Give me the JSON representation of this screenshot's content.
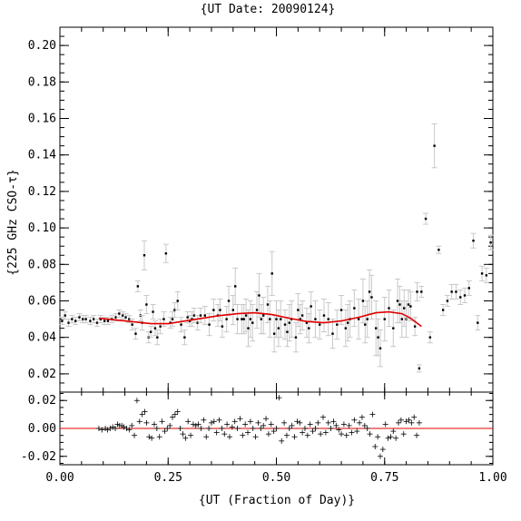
{
  "chart_data": {
    "type": "scatter",
    "title": "{UT Date: 20090124}",
    "xlabel": "{UT (Fraction of Day)}",
    "ylabel": "{225 GHz CSO-τ}",
    "xlim": [
      0,
      1
    ],
    "ylim": [
      0.01,
      0.21
    ],
    "xticks": [
      "0.00",
      "0.25",
      "0.50",
      "0.75",
      "1.00"
    ],
    "yticks": [
      "0.02",
      "0.04",
      "0.06",
      "0.08",
      "0.10",
      "0.12",
      "0.14",
      "0.16",
      "0.18",
      "0.20"
    ],
    "colors": {
      "fit": "#e00000",
      "errorbar": "#c8c8c8",
      "points": "#000000"
    },
    "data": {
      "x": [
        0.005,
        0.012,
        0.02,
        0.028,
        0.036,
        0.045,
        0.053,
        0.06,
        0.07,
        0.078,
        0.086,
        0.094,
        0.103,
        0.111,
        0.12,
        0.129,
        0.137,
        0.145,
        0.152,
        0.16,
        0.167,
        0.175,
        0.18,
        0.186,
        0.19,
        0.195,
        0.2,
        0.205,
        0.21,
        0.215,
        0.22,
        0.225,
        0.232,
        0.24,
        0.245,
        0.255,
        0.26,
        0.265,
        0.272,
        0.28,
        0.288,
        0.295,
        0.3,
        0.305,
        0.31,
        0.318,
        0.325,
        0.335,
        0.345,
        0.355,
        0.365,
        0.37,
        0.375,
        0.385,
        0.39,
        0.4,
        0.405,
        0.41,
        0.42,
        0.425,
        0.43,
        0.435,
        0.44,
        0.445,
        0.455,
        0.46,
        0.465,
        0.47,
        0.48,
        0.485,
        0.49,
        0.495,
        0.5,
        0.505,
        0.51,
        0.52,
        0.525,
        0.53,
        0.535,
        0.545,
        0.55,
        0.555,
        0.56,
        0.57,
        0.575,
        0.58,
        0.59,
        0.6,
        0.61,
        0.62,
        0.63,
        0.64,
        0.65,
        0.66,
        0.665,
        0.67,
        0.68,
        0.69,
        0.7,
        0.705,
        0.71,
        0.715,
        0.72,
        0.73,
        0.735,
        0.74,
        0.75,
        0.76,
        0.77,
        0.78,
        0.785,
        0.79,
        0.795,
        0.8,
        0.805,
        0.81,
        0.82,
        0.825,
        0.83,
        0.835,
        0.845,
        0.855,
        0.865,
        0.875,
        0.885,
        0.895,
        0.905,
        0.915,
        0.925,
        0.935,
        0.945,
        0.955,
        0.965,
        0.975,
        0.985,
        0.995
      ],
      "y": [
        0.049,
        0.052,
        0.048,
        0.05,
        0.049,
        0.051,
        0.05,
        0.05,
        0.049,
        0.05,
        0.048,
        0.05,
        0.049,
        0.049,
        0.05,
        0.051,
        0.053,
        0.052,
        0.051,
        0.05,
        0.047,
        0.042,
        0.068,
        0.052,
        0.048,
        0.085,
        0.058,
        0.04,
        0.043,
        0.054,
        0.045,
        0.04,
        0.046,
        0.05,
        0.086,
        0.048,
        0.05,
        0.055,
        0.06,
        0.047,
        0.04,
        0.051,
        0.049,
        0.05,
        0.052,
        0.048,
        0.052,
        0.052,
        0.047,
        0.055,
        0.052,
        0.055,
        0.046,
        0.05,
        0.06,
        0.055,
        0.068,
        0.05,
        0.05,
        0.05,
        0.052,
        0.045,
        0.05,
        0.048,
        0.055,
        0.063,
        0.05,
        0.052,
        0.058,
        0.05,
        0.075,
        0.042,
        0.05,
        0.045,
        0.05,
        0.047,
        0.043,
        0.048,
        0.05,
        0.04,
        0.055,
        0.05,
        0.052,
        0.048,
        0.045,
        0.057,
        0.05,
        0.047,
        0.052,
        0.05,
        0.042,
        0.047,
        0.055,
        0.045,
        0.048,
        0.05,
        0.056,
        0.05,
        0.06,
        0.047,
        0.05,
        0.065,
        0.062,
        0.045,
        0.04,
        0.034,
        0.05,
        0.056,
        0.045,
        0.06,
        0.058,
        0.05,
        0.056,
        0.05,
        0.058,
        0.057,
        0.046,
        0.065,
        0.023,
        0.065,
        0.105,
        0.04,
        0.145,
        0.088,
        0.055,
        0.06,
        0.065,
        0.065,
        0.062,
        0.063,
        0.067,
        0.093,
        0.048,
        0.075,
        0.074,
        0.092
      ],
      "err": [
        0.002,
        0.002,
        0.002,
        0.002,
        0.002,
        0.002,
        0.002,
        0.002,
        0.002,
        0.002,
        0.002,
        0.002,
        0.002,
        0.002,
        0.002,
        0.002,
        0.002,
        0.002,
        0.002,
        0.002,
        0.003,
        0.003,
        0.003,
        0.003,
        0.004,
        0.008,
        0.005,
        0.003,
        0.003,
        0.004,
        0.004,
        0.004,
        0.004,
        0.004,
        0.005,
        0.003,
        0.004,
        0.004,
        0.005,
        0.004,
        0.004,
        0.003,
        0.003,
        0.004,
        0.004,
        0.004,
        0.004,
        0.005,
        0.006,
        0.006,
        0.006,
        0.006,
        0.006,
        0.007,
        0.008,
        0.008,
        0.01,
        0.008,
        0.008,
        0.008,
        0.009,
        0.01,
        0.01,
        0.01,
        0.01,
        0.012,
        0.008,
        0.01,
        0.01,
        0.01,
        0.012,
        0.01,
        0.01,
        0.01,
        0.01,
        0.008,
        0.008,
        0.01,
        0.01,
        0.008,
        0.009,
        0.008,
        0.008,
        0.008,
        0.008,
        0.008,
        0.01,
        0.008,
        0.009,
        0.009,
        0.008,
        0.008,
        0.008,
        0.01,
        0.01,
        0.01,
        0.01,
        0.011,
        0.012,
        0.01,
        0.01,
        0.012,
        0.012,
        0.015,
        0.01,
        0.01,
        0.012,
        0.01,
        0.01,
        0.012,
        0.01,
        0.01,
        0.01,
        0.01,
        0.008,
        0.008,
        0.005,
        0.005,
        0.002,
        0.003,
        0.003,
        0.003,
        0.012,
        0.002,
        0.003,
        0.003,
        0.004,
        0.004,
        0.004,
        0.004,
        0.004,
        0.004,
        0.004,
        0.004,
        0.004,
        0.004
      ]
    },
    "fit": {
      "x": [
        0.09,
        0.13,
        0.17,
        0.21,
        0.25,
        0.29,
        0.33,
        0.37,
        0.41,
        0.45,
        0.49,
        0.53,
        0.57,
        0.61,
        0.65,
        0.69,
        0.73,
        0.76,
        0.79,
        0.81,
        0.835
      ],
      "y": [
        0.0505,
        0.0495,
        0.0485,
        0.0475,
        0.0475,
        0.049,
        0.0505,
        0.052,
        0.053,
        0.0535,
        0.0525,
        0.0505,
        0.0487,
        0.048,
        0.049,
        0.051,
        0.0535,
        0.054,
        0.053,
        0.0505,
        0.046
      ]
    },
    "residual_panel": {
      "ylim": [
        -0.026,
        0.026
      ],
      "yticks": [
        "0.02",
        "0.00",
        "-0.02"
      ],
      "x": [
        0.09,
        0.097,
        0.105,
        0.11,
        0.116,
        0.122,
        0.128,
        0.133,
        0.138,
        0.143,
        0.148,
        0.154,
        0.16,
        0.166,
        0.172,
        0.178,
        0.184,
        0.19,
        0.196,
        0.2,
        0.206,
        0.212,
        0.218,
        0.224,
        0.23,
        0.236,
        0.242,
        0.248,
        0.254,
        0.26,
        0.266,
        0.272,
        0.278,
        0.284,
        0.29,
        0.296,
        0.302,
        0.308,
        0.314,
        0.32,
        0.326,
        0.332,
        0.338,
        0.344,
        0.35,
        0.356,
        0.362,
        0.368,
        0.374,
        0.38,
        0.386,
        0.392,
        0.398,
        0.404,
        0.41,
        0.416,
        0.422,
        0.428,
        0.434,
        0.44,
        0.446,
        0.452,
        0.458,
        0.464,
        0.47,
        0.476,
        0.482,
        0.488,
        0.494,
        0.5,
        0.506,
        0.512,
        0.518,
        0.524,
        0.53,
        0.536,
        0.542,
        0.548,
        0.554,
        0.56,
        0.566,
        0.572,
        0.578,
        0.584,
        0.59,
        0.596,
        0.602,
        0.608,
        0.614,
        0.62,
        0.626,
        0.632,
        0.638,
        0.644,
        0.65,
        0.656,
        0.662,
        0.668,
        0.674,
        0.68,
        0.686,
        0.692,
        0.698,
        0.704,
        0.71,
        0.716,
        0.722,
        0.728,
        0.734,
        0.74,
        0.746,
        0.752,
        0.758,
        0.764,
        0.77,
        0.776,
        0.782,
        0.788,
        0.794,
        0.8,
        0.806,
        0.812,
        0.818,
        0.824,
        0.83
      ],
      "y": [
        0.0,
        -0.001,
        0.0,
        -0.001,
        0.0,
        0.001,
        0.0,
        0.003,
        0.002,
        0.002,
        0.001,
        0.0,
        -0.001,
        0.002,
        -0.005,
        0.02,
        0.005,
        0.01,
        0.012,
        0.004,
        -0.006,
        -0.007,
        0.003,
        0.0,
        -0.006,
        0.005,
        -0.002,
        0.0,
        0.002,
        0.008,
        0.01,
        0.012,
        0.0,
        -0.004,
        -0.007,
        0.005,
        -0.005,
        0.003,
        0.002,
        0.003,
        0.0,
        0.006,
        -0.006,
        0.0,
        0.004,
        0.005,
        -0.003,
        0.006,
        0.0,
        -0.004,
        0.003,
        -0.006,
        0.001,
        0.005,
        0.0,
        0.007,
        -0.005,
        0.003,
        -0.003,
        0.005,
        0.0,
        -0.006,
        0.004,
        0.0,
        0.002,
        0.007,
        -0.004,
        0.003,
        -0.002,
        0.0,
        0.022,
        -0.009,
        0.004,
        -0.005,
        0.0,
        0.002,
        -0.006,
        0.005,
        0.004,
        -0.003,
        0.0,
        -0.005,
        0.003,
        -0.002,
        0.0,
        0.004,
        -0.004,
        0.008,
        -0.003,
        0.004,
        0.0,
        0.005,
        0.002,
        -0.001,
        -0.004,
        0.003,
        -0.005,
        0.002,
        -0.003,
        0.006,
        -0.002,
        0.004,
        0.008,
        0.002,
        0.0,
        -0.004,
        0.01,
        -0.013,
        -0.006,
        -0.02,
        -0.015,
        0.003,
        -0.007,
        -0.006,
        -0.002,
        -0.007,
        0.004,
        0.006,
        -0.004,
        0.005,
        0.006,
        0.004,
        0.008,
        -0.005,
        0.004
      ]
    }
  }
}
